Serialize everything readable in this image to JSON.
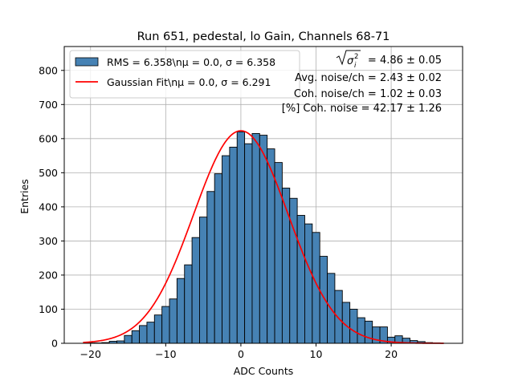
{
  "chart_data": {
    "type": "bar",
    "title": "Run 651, pedestal, lo Gain, Channels 68-71",
    "xlabel": "ADC Counts",
    "ylabel": "Entries",
    "xlim": [
      -23.5,
      29.5
    ],
    "ylim": [
      0,
      870
    ],
    "xticks": [
      -20,
      -10,
      0,
      10,
      20
    ],
    "yticks": [
      0,
      100,
      200,
      300,
      400,
      500,
      600,
      700,
      800
    ],
    "grid": true,
    "legend_position": "top-left",
    "bin_width": 1,
    "histogram": {
      "name": "RMS = 6.358\\n$\\mu$ = 0.0, $\\sigma$ = 6.358",
      "legend_label": "RMS = 6.358\\nμ = 0.0, σ = 6.358",
      "color": "#4682b4",
      "bin_centers": [
        -20,
        -19,
        -18,
        -17,
        -16,
        -15,
        -14,
        -13,
        -12,
        -11,
        -10,
        -9,
        -8,
        -7,
        -6,
        -5,
        -4,
        -3,
        -2,
        -1,
        0,
        1,
        2,
        3,
        4,
        5,
        6,
        7,
        8,
        9,
        10,
        11,
        12,
        13,
        14,
        15,
        16,
        17,
        18,
        19,
        20,
        21,
        22,
        23,
        24,
        25,
        26
      ],
      "values": [
        1,
        1,
        2,
        6,
        7,
        23,
        37,
        52,
        62,
        83,
        108,
        130,
        190,
        230,
        310,
        370,
        445,
        497,
        550,
        575,
        620,
        585,
        615,
        610,
        570,
        530,
        455,
        425,
        375,
        350,
        325,
        255,
        205,
        155,
        120,
        100,
        75,
        65,
        48,
        48,
        18,
        22,
        15,
        8,
        5,
        2,
        1
      ]
    },
    "fit": {
      "legend_label": "Gaussian Fit\\nμ = 0.0, σ = 6.291",
      "color": "#ff0000",
      "amplitude": 623,
      "mu": 0.0,
      "sigma": 6.291,
      "x_range": [
        -21,
        27
      ]
    },
    "annotations": [
      "= 4.86 ± 0.05",
      "Avg. noise/ch = 2.43 ± 0.02",
      "Coh. noise/ch = 1.02 ± 0.03",
      "[%] Coh. noise = 42.17 ± 1.26"
    ]
  }
}
